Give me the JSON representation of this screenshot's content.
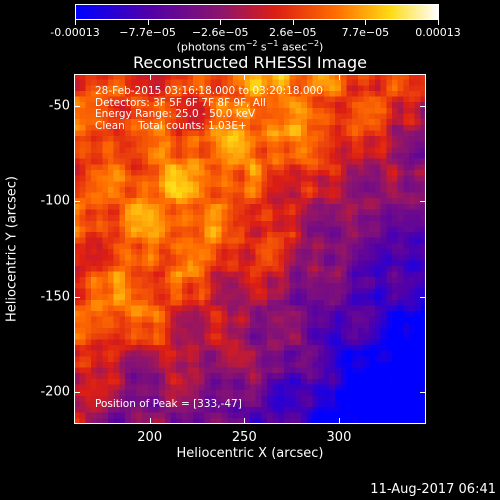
{
  "colorbar": {
    "tick_labels": [
      "-0.00013",
      "−7.7e−05",
      "−2.6e−05",
      "2.6e−05",
      "7.7e−05",
      "0.00013"
    ],
    "units_base": "(photons cm",
    "units_sup1": "−2",
    "units_mid1": " s",
    "units_sup2": "−1",
    "units_mid2": " asec",
    "units_sup3": "−2",
    "units_end": ")"
  },
  "title": "Reconstructed RHESSI Image",
  "annotations": {
    "line1": "28-Feb-2015 03:16:18.000 to 03:20:18.000",
    "line2": "Detectors: 3F 5F 6F 7F 8F 9F, All",
    "line3": "Energy Range: 25.0 - 50.0 keV",
    "line4": "Clean    Total counts: 1.03E+",
    "peak": "Position of Peak = [333,-47]"
  },
  "axes": {
    "xlabel": "Heliocentric X (arcsec)",
    "ylabel": "Heliocentric Y (arcsec)",
    "x_ticks": [
      "200",
      "250",
      "300"
    ],
    "y_ticks": [
      "-50",
      "-100",
      "-150",
      "-200"
    ]
  },
  "timestamp": "11-Aug-2017 06:41",
  "chart_data": {
    "type": "heatmap",
    "title": "Reconstructed RHESSI Image",
    "xlabel": "Heliocentric X (arcsec)",
    "ylabel": "Heliocentric Y (arcsec)",
    "xlim": [
      160,
      346
    ],
    "ylim": [
      -217,
      -33
    ],
    "x_ticks": [
      200,
      250,
      300
    ],
    "y_ticks": [
      -50,
      -100,
      -150,
      -200
    ],
    "colorbar_range": [
      -0.00013,
      0.00013
    ],
    "colormap": "blue-purple-red-yellow-white",
    "peak_position": [
      333,
      -47
    ]
  }
}
